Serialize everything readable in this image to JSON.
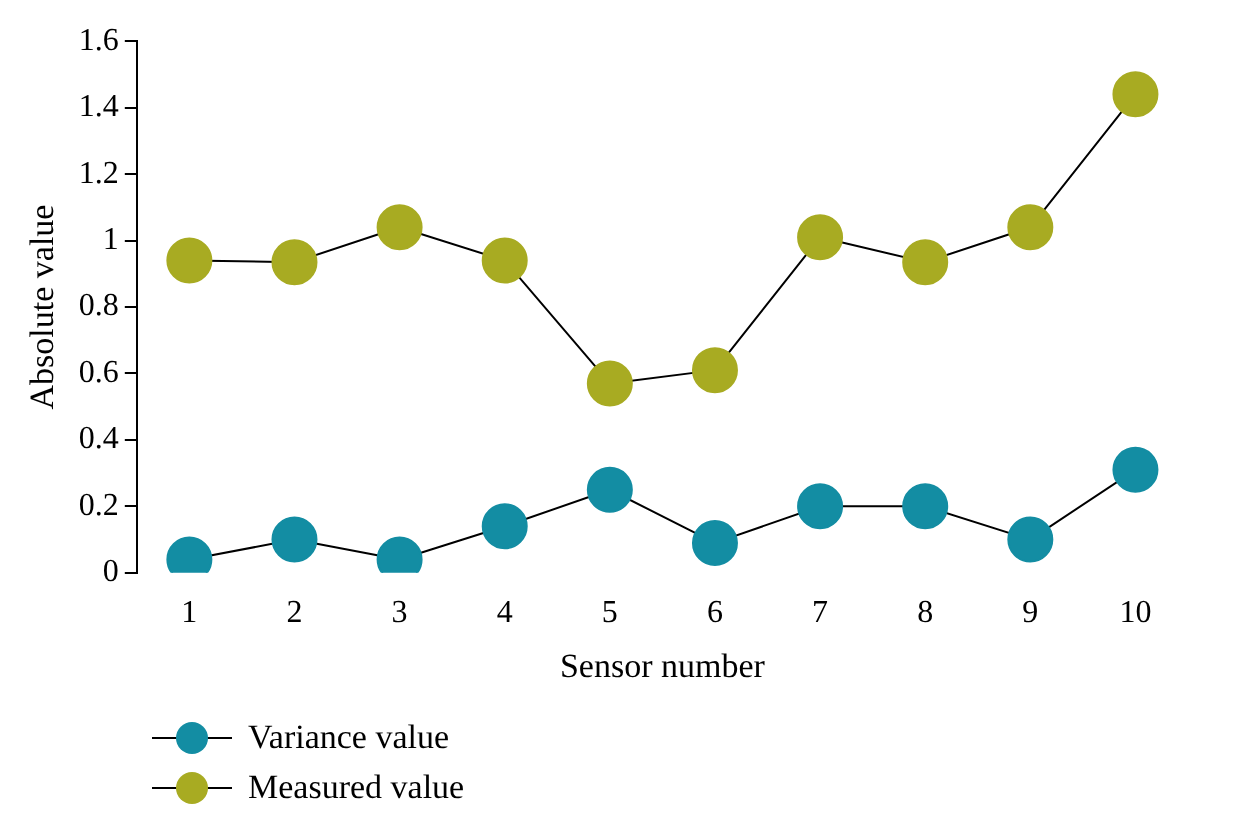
{
  "chart_data": {
    "type": "line",
    "xlabel": "Sensor number",
    "ylabel": "Absolute value",
    "categories": [
      "1",
      "2",
      "3",
      "4",
      "5",
      "6",
      "7",
      "8",
      "9",
      "10"
    ],
    "series": [
      {
        "name": "Variance value",
        "color": "#138da3",
        "values": [
          0.04,
          0.1,
          0.04,
          0.14,
          0.25,
          0.09,
          0.2,
          0.2,
          0.1,
          0.31
        ]
      },
      {
        "name": "Measured value",
        "color": "#a8ab22",
        "values": [
          0.94,
          0.935,
          1.04,
          0.94,
          0.57,
          0.61,
          1.01,
          0.935,
          1.04,
          1.44
        ]
      }
    ],
    "ylim": [
      0,
      1.6
    ],
    "yticks": [
      0,
      0.2,
      0.4,
      0.6,
      0.8,
      1,
      1.2,
      1.4,
      1.6
    ],
    "grid": false,
    "legend": "bottom left",
    "marker": "circle",
    "line_style": "solid"
  }
}
